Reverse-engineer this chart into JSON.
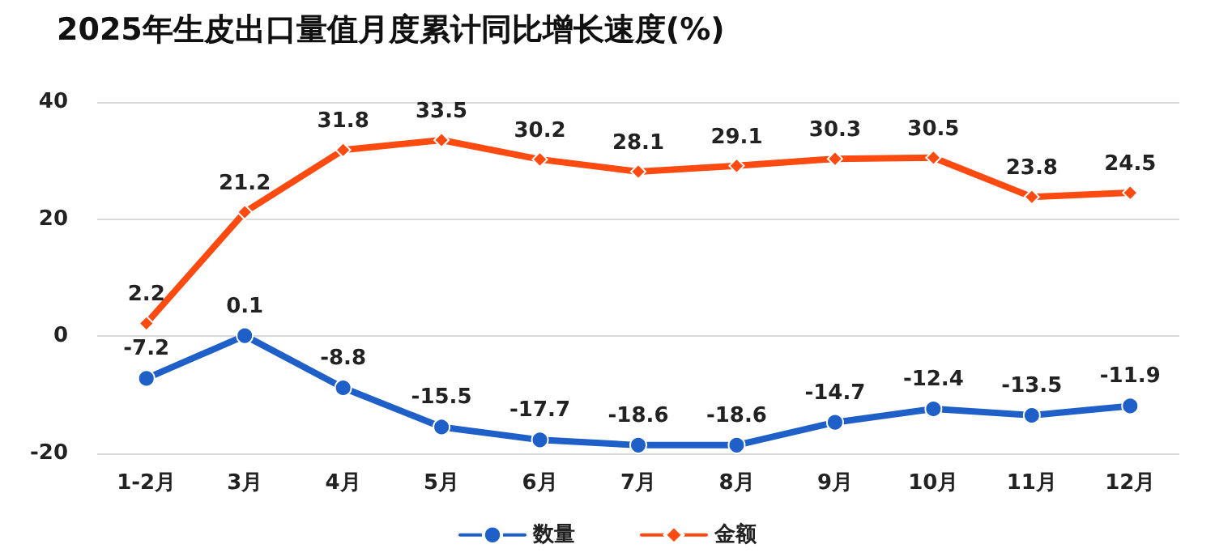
{
  "chart_data": {
    "type": "line",
    "title": "2025年生皮出口量值月度累计同比增长速度(%)",
    "categories": [
      "1-2月",
      "3月",
      "4月",
      "5月",
      "6月",
      "7月",
      "8月",
      "9月",
      "10月",
      "11月",
      "12月"
    ],
    "series": [
      {
        "name": "数量",
        "color": "#1f5fc8",
        "marker": "circle",
        "values": [
          -7.2,
          0.1,
          -8.8,
          -15.5,
          -17.7,
          -18.6,
          -18.6,
          -14.7,
          -12.4,
          -13.5,
          -11.9
        ]
      },
      {
        "name": "金额",
        "color": "#fc4a10",
        "marker": "diamond",
        "values": [
          2.2,
          21.2,
          31.8,
          33.5,
          30.2,
          28.1,
          29.1,
          30.3,
          30.5,
          23.8,
          24.5
        ]
      }
    ],
    "ylim": [
      -20,
      40
    ],
    "yticks": [
      -20,
      0,
      20,
      40
    ],
    "grid": "y",
    "legend": "bottom",
    "data_labels": true,
    "line_style": "solid"
  }
}
